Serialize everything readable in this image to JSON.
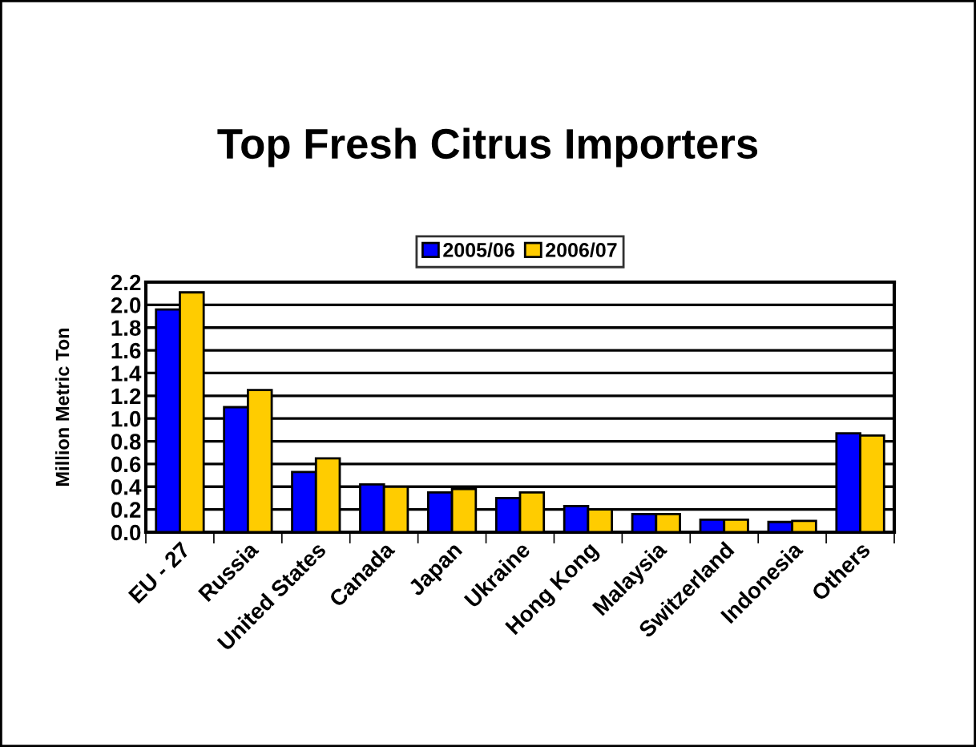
{
  "chart_data": {
    "type": "bar",
    "title": "Top Fresh Citrus Importers",
    "ylabel": "Million Metric Ton",
    "categories": [
      "EU - 27",
      "Russia",
      "United States",
      "Canada",
      "Japan",
      "Ukraine",
      "Hong Kong",
      "Malaysia",
      "Switzerland",
      "Indonesia",
      "Others"
    ],
    "series": [
      {
        "name": "2005/06",
        "color": "#0000ff",
        "values": [
          1.96,
          1.1,
          0.53,
          0.42,
          0.35,
          0.3,
          0.23,
          0.16,
          0.11,
          0.09,
          0.87
        ]
      },
      {
        "name": "2006/07",
        "color": "#ffcc00",
        "values": [
          2.11,
          1.25,
          0.65,
          0.4,
          0.38,
          0.35,
          0.2,
          0.16,
          0.11,
          0.1,
          0.85
        ]
      }
    ],
    "ylim": [
      0,
      2.2
    ],
    "yticks": [
      {
        "value": 0,
        "label": "0.0"
      },
      0.2,
      0.4,
      0.6,
      0.8,
      {
        "value": 1,
        "label": "1.0"
      },
      1.2,
      1.4,
      1.6,
      1.8,
      {
        "value": 2,
        "label": "2.0"
      },
      2.2
    ],
    "grid": "y",
    "legend": "top"
  }
}
